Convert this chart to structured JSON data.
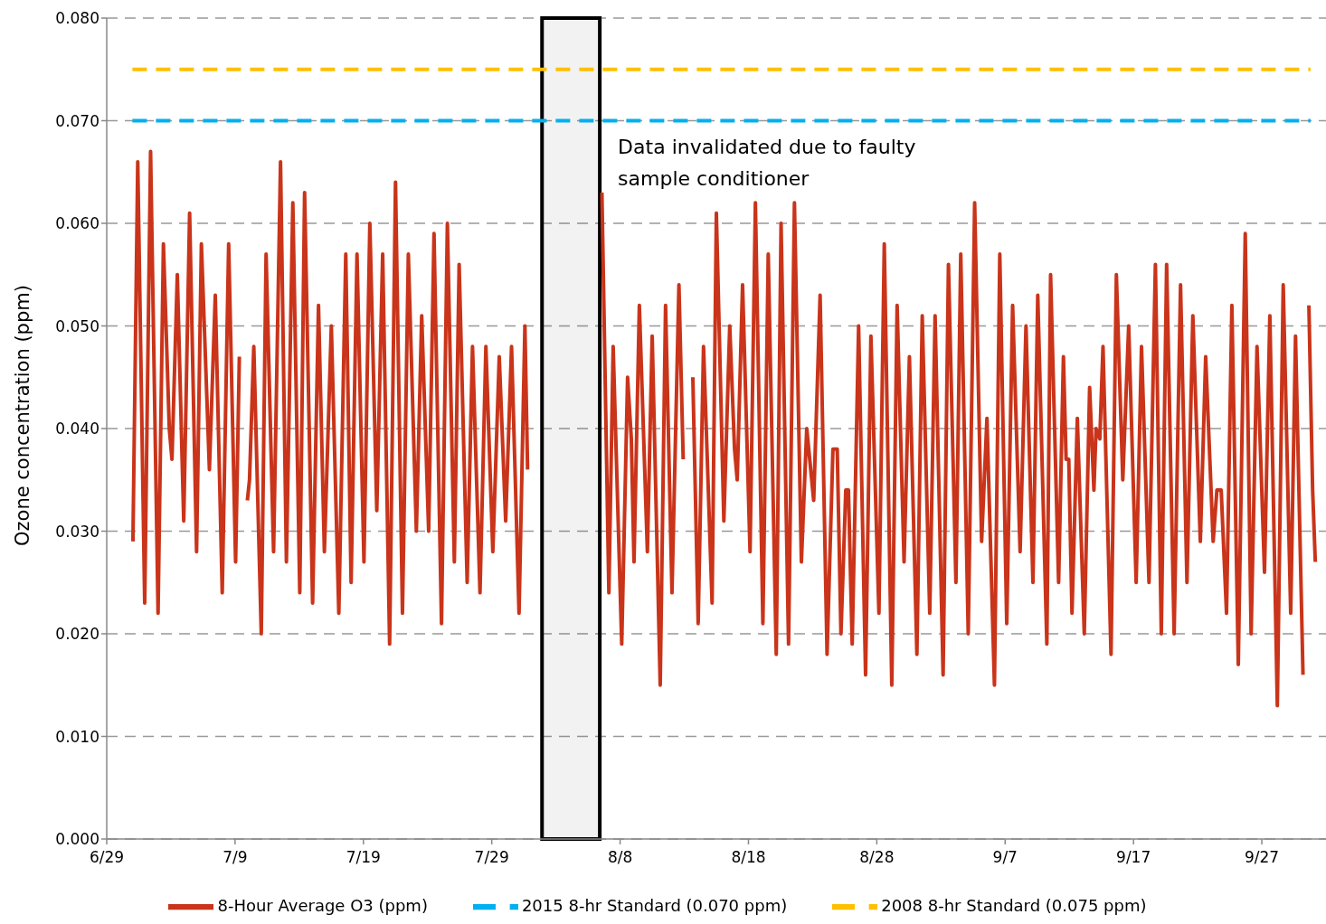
{
  "chart_data": {
    "type": "line",
    "ylabel": "Ozone concentration (ppm)",
    "xlim": [
      "--06-29",
      "--10-02"
    ],
    "xticks": [
      {
        "value": "--06-29",
        "label": "6/29"
      },
      {
        "value": "--07-09",
        "label": "7/9"
      },
      {
        "value": "--07-19",
        "label": "7/19"
      },
      {
        "value": "--07-29",
        "label": "7/29"
      },
      {
        "value": "--08-08",
        "label": "8/8"
      },
      {
        "value": "--08-18",
        "label": "8/18"
      },
      {
        "value": "--08-28",
        "label": "8/28"
      },
      {
        "value": "--09-07",
        "label": "9/7"
      },
      {
        "value": "--09-17",
        "label": "9/17"
      },
      {
        "value": "--09-27",
        "label": "9/27"
      }
    ],
    "ylim": [
      0,
      0.08
    ],
    "yticks": [
      {
        "value": 0,
        "label": "0.000"
      },
      {
        "value": 0.01,
        "label": "0.010"
      },
      {
        "value": 0.02,
        "label": "0.020"
      },
      {
        "value": 0.03,
        "label": "0.030"
      },
      {
        "value": 0.04,
        "label": "0.040"
      },
      {
        "value": 0.05,
        "label": "0.050"
      },
      {
        "value": 0.06,
        "label": "0.060"
      },
      {
        "value": 0.07,
        "label": "0.070"
      },
      {
        "value": 0.08,
        "label": "0.080"
      }
    ],
    "grid": "y",
    "legend": "bottom",
    "marker": "none",
    "bands": [
      {
        "axis": "x",
        "from": "--08-01T22:00",
        "to": "--08-06T10:00",
        "label": "Data invalidated due to faulty sample conditioner",
        "color": "#000000"
      }
    ],
    "series": [
      {
        "name": "8-Hour Average O3 (ppm)",
        "color": "#c9341a",
        "line_style": "solid",
        "x": [
          "--07-01T01:00",
          "--07-01T10:00",
          "--07-01T23:00",
          "--07-02T10:00",
          "--07-03T00:00",
          "--07-03T10:00",
          "--07-03T21:00",
          "--07-04T02:00",
          "--07-04T12:00",
          "--07-05T00:00",
          "--07-05T11:00",
          "--07-06T00:00",
          "--07-06T09:00",
          "--07-07T00:00",
          "--07-07T11:00",
          "--07-08T00:00",
          "--07-08T12:00",
          "--07-09T01:00",
          "--07-09T08:00",
          "--07-09T16:00",
          "--07-09T23:00",
          "--07-10T03:00",
          "--07-10T11:00",
          "--07-11T01:00",
          "--07-11T10:00",
          "--07-12T00:00",
          "--07-12T13:00",
          "--07-13T00:00",
          "--07-13T12:00",
          "--07-14T01:00",
          "--07-14T10:00",
          "--07-15T01:00",
          "--07-15T12:00",
          "--07-15T23:00",
          "--07-16T12:00",
          "--07-17T02:00",
          "--07-17T15:00",
          "--07-18T01:00",
          "--07-18T12:00",
          "--07-19T01:00",
          "--07-19T12:00",
          "--07-20T01:00",
          "--07-20T12:00",
          "--07-21T01:00",
          "--07-21T12:00",
          "--07-22T01:00",
          "--07-22T12:00",
          "--07-23T03:00",
          "--07-23T13:00",
          "--07-24T02:00",
          "--07-24T12:00",
          "--07-25T02:00",
          "--07-25T13:00",
          "--07-26T02:00",
          "--07-26T11:00",
          "--07-27T02:00",
          "--07-27T12:00",
          "--07-28T02:00",
          "--07-28T13:00",
          "--07-29T02:00",
          "--07-29T14:00",
          "--07-30T02:00",
          "--07-30T13:00",
          "--07-31T03:00",
          "--07-31T14:00",
          "--07-31T19:00",
          "--08-03T00:00",
          "--08-06T14:00",
          "--08-07T03:00",
          "--08-07T11:00",
          "--08-08T03:00",
          "--08-08T14:00",
          "--08-08T21:00",
          "--08-09T02:00",
          "--08-09T12:00",
          "--08-10T03:00",
          "--08-10T12:00",
          "--08-11T03:00",
          "--08-11T13:00",
          "--08-12T01:00",
          "--08-12T14:00",
          "--08-12T22:00",
          "--08-13T06:00",
          "--08-13T16:00",
          "--08-14T02:00",
          "--08-14T12:00",
          "--08-15T04:00",
          "--08-15T12:00",
          "--08-16T02:00",
          "--08-16T13:00",
          "--08-16T22:00",
          "--08-17T03:00",
          "--08-17T13:00",
          "--08-18T03:00",
          "--08-18T13:00",
          "--08-19T03:00",
          "--08-19T13:00",
          "--08-20T04:00",
          "--08-20T13:00",
          "--08-21T03:00",
          "--08-21T14:00",
          "--08-22T03:00",
          "--08-22T13:00",
          "--08-23T02:00",
          "--08-23T14:00",
          "--08-24T03:00",
          "--08-24T14:00",
          "--08-24T22:00",
          "--08-25T05:00",
          "--08-25T14:00",
          "--08-25T19:00",
          "--08-26T02:00",
          "--08-26T14:00",
          "--08-27T03:00",
          "--08-27T13:00",
          "--08-28T04:00",
          "--08-28T14:00",
          "--08-29T04:00",
          "--08-29T14:00",
          "--08-30T03:00",
          "--08-30T13:00",
          "--08-31T03:00",
          "--08-31T13:00",
          "--09-01T03:00",
          "--09-01T13:00",
          "--09-02T04:00",
          "--09-02T14:00",
          "--09-03T04:00",
          "--09-03T13:00",
          "--09-04T03:00",
          "--09-04T15:00",
          "--09-05T04:00",
          "--09-05T14:00",
          "--09-06T04:00",
          "--09-06T14:00",
          "--09-07T03:00",
          "--09-07T14:00",
          "--09-08T04:00",
          "--09-08T15:00",
          "--09-09T04:00",
          "--09-09T13:00",
          "--09-10T06:00",
          "--09-10T13:00",
          "--09-11T04:00",
          "--09-11T13:00",
          "--09-11T18:00",
          "--09-11T23:00",
          "--09-12T05:00",
          "--09-12T15:00",
          "--09-13T04:00",
          "--09-13T14:00",
          "--09-13T22:00",
          "--09-14T02:00",
          "--09-14T09:00",
          "--09-14T15:00",
          "--09-15T06:00",
          "--09-15T16:00",
          "--09-16T04:00",
          "--09-16T15:00",
          "--09-17T05:00",
          "--09-17T15:00",
          "--09-18T05:00",
          "--09-18T17:00",
          "--09-19T04:00",
          "--09-19T14:00",
          "--09-20T04:00",
          "--09-20T16:00",
          "--09-21T04:00",
          "--09-21T15:00",
          "--09-22T05:00",
          "--09-22T15:00",
          "--09-23T05:00",
          "--09-23T12:00",
          "--09-23T20:00",
          "--09-24T06:00",
          "--09-24T16:00",
          "--09-25T04:00",
          "--09-25T17:00",
          "--09-26T04:00",
          "--09-26T15:00",
          "--09-27T05:00",
          "--09-27T15:00",
          "--09-28T05:00",
          "--09-28T16:00",
          "--09-29T06:00",
          "--09-29T15:00",
          "--09-30T05:00",
          "--09-30T12:00",
          "--09-30T16:00",
          "--09-30T23:00",
          "--10-01T04:00"
        ],
        "values": [
          0.029,
          0.066,
          0.023,
          0.067,
          0.022,
          0.058,
          0.04,
          0.037,
          0.055,
          0.031,
          0.061,
          0.028,
          0.058,
          0.036,
          0.053,
          0.024,
          0.058,
          0.027,
          0.047,
          null,
          0.033,
          0.035,
          0.048,
          0.02,
          0.057,
          0.028,
          0.066,
          0.027,
          0.062,
          0.024,
          0.063,
          0.023,
          0.052,
          0.028,
          0.05,
          0.022,
          0.057,
          0.025,
          0.057,
          0.027,
          0.06,
          0.032,
          0.057,
          0.019,
          0.064,
          0.022,
          0.057,
          0.03,
          0.051,
          0.03,
          0.059,
          0.021,
          0.06,
          0.027,
          0.056,
          0.025,
          0.048,
          0.024,
          0.048,
          0.028,
          0.047,
          0.031,
          0.048,
          0.022,
          0.05,
          0.036,
          null,
          0.063,
          0.024,
          0.048,
          0.019,
          0.045,
          0.039,
          0.027,
          0.052,
          0.028,
          0.049,
          0.015,
          0.052,
          0.024,
          0.054,
          0.037,
          null,
          0.045,
          0.021,
          0.048,
          0.023,
          0.061,
          0.031,
          0.05,
          0.038,
          0.035,
          0.054,
          0.028,
          0.062,
          0.021,
          0.057,
          0.018,
          0.06,
          0.019,
          0.062,
          0.027,
          0.04,
          0.033,
          0.053,
          0.018,
          0.038,
          0.038,
          0.02,
          0.034,
          0.034,
          0.019,
          0.05,
          0.016,
          0.049,
          0.022,
          0.058,
          0.015,
          0.052,
          0.027,
          0.047,
          0.018,
          0.051,
          0.022,
          0.051,
          0.016,
          0.056,
          0.025,
          0.057,
          0.02,
          0.062,
          0.029,
          0.041,
          0.015,
          0.057,
          0.021,
          0.052,
          0.028,
          0.05,
          0.025,
          0.053,
          0.019,
          0.055,
          0.025,
          0.047,
          0.037,
          0.037,
          0.022,
          0.041,
          0.02,
          0.044,
          0.034,
          0.04,
          0.039,
          0.048,
          0.018,
          0.055,
          0.035,
          0.05,
          0.025,
          0.048,
          0.025,
          0.056,
          0.02,
          0.056,
          0.02,
          0.054,
          0.025,
          0.051,
          0.029,
          0.047,
          0.029,
          0.034,
          0.034,
          0.022,
          0.052,
          0.017,
          0.059,
          0.02,
          0.048,
          0.026,
          0.051,
          0.013,
          0.054,
          0.022,
          0.049,
          0.016,
          null,
          0.052,
          0.034,
          0.027
        ]
      },
      {
        "name": "2015 8-hr Standard (0.070 ppm)",
        "color": "#00b0f0",
        "line_style": "dashed",
        "x": [
          "--07-01T00:00",
          "--09-30T19:00"
        ],
        "values": [
          0.07,
          0.07
        ]
      },
      {
        "name": "2008 8-hr Standard (0.075 ppm)",
        "color": "#ffc000",
        "line_style": "dashed",
        "x": [
          "--07-01T00:00",
          "--09-30T19:00"
        ],
        "values": [
          0.075,
          0.075
        ]
      }
    ]
  }
}
